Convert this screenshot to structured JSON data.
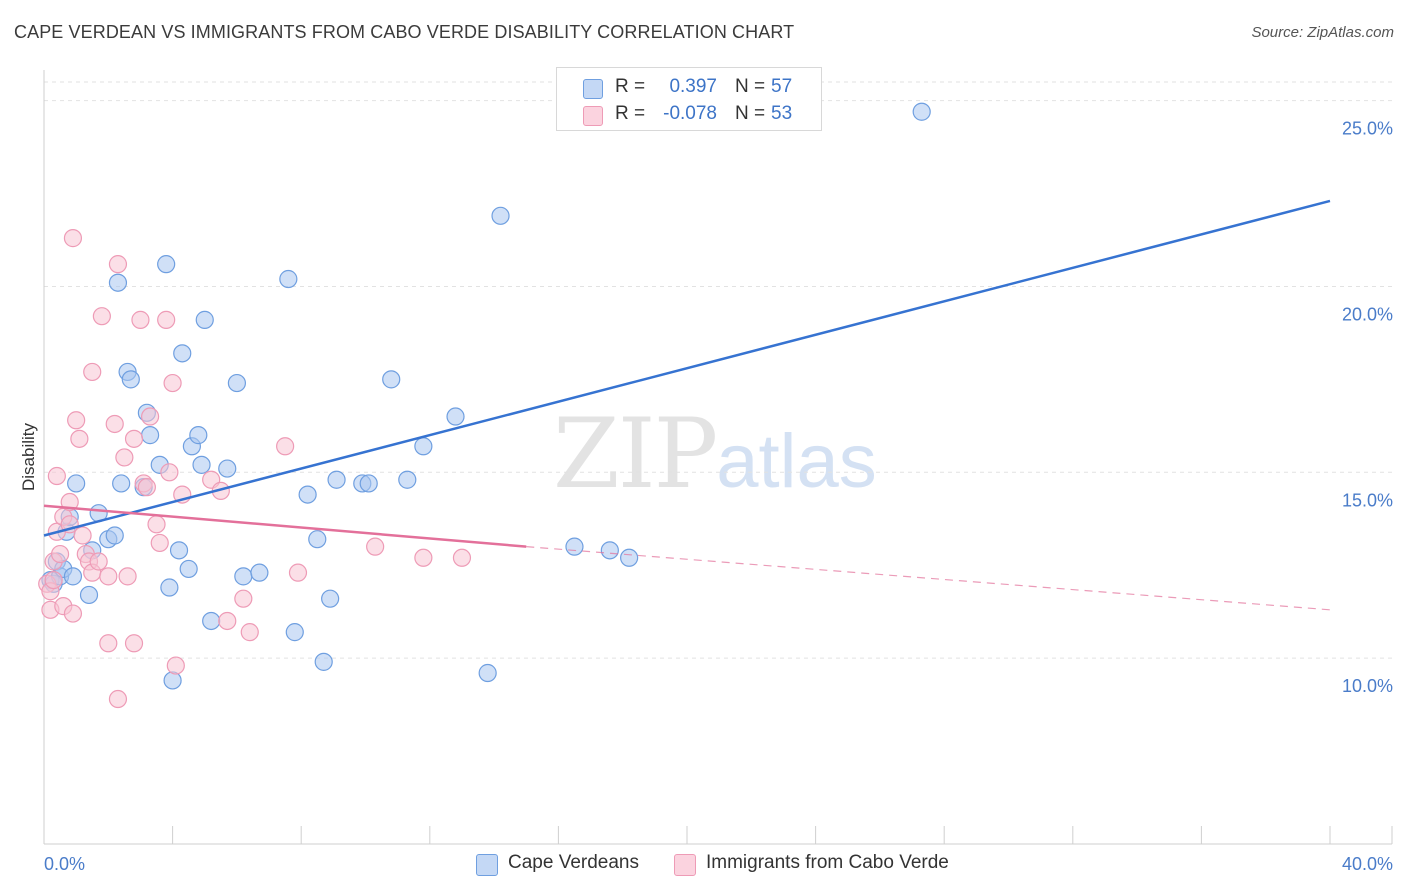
{
  "title": "CAPE VERDEAN VS IMMIGRANTS FROM CABO VERDE DISABILITY CORRELATION CHART",
  "source": "Source: ZipAtlas.com",
  "watermark": {
    "zip": "ZIP",
    "atlas": "atlas"
  },
  "legend_top": [
    {
      "r_label": "R =",
      "r_value": "0.397",
      "n_label": "N =",
      "n_value": "57"
    },
    {
      "r_label": "R =",
      "r_value": "-0.078",
      "n_label": "N =",
      "n_value": "53"
    }
  ],
  "chart_data": {
    "type": "scatter",
    "ylabel": "Disability",
    "xlim": [
      0,
      40
    ],
    "ylim": [
      5,
      25.5
    ],
    "x_tick_labels": [
      "0.0%",
      "40.0%"
    ],
    "y_ticks": [
      10,
      15,
      20,
      25
    ],
    "y_tick_labels": [
      "10.0%",
      "15.0%",
      "20.0%",
      "25.0%"
    ],
    "grid": true,
    "legend_position": "bottom",
    "series": [
      {
        "name": "Cape Verdeans",
        "color": "#a9c6f0",
        "edge": "#6f9fe0",
        "trend": {
          "x": [
            0,
            40
          ],
          "y": [
            13.3,
            22.3
          ],
          "color": "#3673d1",
          "style": "solid"
        },
        "points": [
          [
            0.2,
            12.1
          ],
          [
            0.3,
            12.0
          ],
          [
            0.4,
            12.6
          ],
          [
            0.5,
            12.2
          ],
          [
            0.6,
            12.4
          ],
          [
            0.7,
            13.4
          ],
          [
            0.8,
            13.8
          ],
          [
            0.9,
            12.2
          ],
          [
            1.0,
            14.7
          ],
          [
            1.4,
            11.7
          ],
          [
            1.5,
            12.9
          ],
          [
            1.7,
            13.9
          ],
          [
            2.0,
            13.2
          ],
          [
            2.2,
            13.3
          ],
          [
            2.4,
            14.7
          ],
          [
            2.3,
            20.1
          ],
          [
            2.6,
            17.7
          ],
          [
            2.7,
            17.5
          ],
          [
            3.1,
            14.6
          ],
          [
            3.2,
            16.6
          ],
          [
            3.3,
            16.0
          ],
          [
            3.6,
            15.2
          ],
          [
            3.8,
            20.6
          ],
          [
            3.9,
            11.9
          ],
          [
            4.0,
            9.4
          ],
          [
            4.2,
            12.9
          ],
          [
            4.3,
            18.2
          ],
          [
            4.5,
            12.4
          ],
          [
            4.6,
            15.7
          ],
          [
            4.8,
            16.0
          ],
          [
            4.9,
            15.2
          ],
          [
            5.0,
            19.1
          ],
          [
            5.2,
            11.0
          ],
          [
            5.7,
            15.1
          ],
          [
            6.0,
            17.4
          ],
          [
            6.2,
            12.2
          ],
          [
            6.7,
            12.3
          ],
          [
            7.6,
            20.2
          ],
          [
            7.8,
            10.7
          ],
          [
            8.2,
            14.4
          ],
          [
            8.5,
            13.2
          ],
          [
            8.7,
            9.9
          ],
          [
            8.9,
            11.6
          ],
          [
            9.1,
            14.8
          ],
          [
            9.9,
            14.7
          ],
          [
            10.1,
            14.7
          ],
          [
            10.8,
            17.5
          ],
          [
            11.3,
            14.8
          ],
          [
            11.8,
            15.7
          ],
          [
            12.8,
            16.5
          ],
          [
            13.8,
            9.6
          ],
          [
            14.2,
            21.9
          ],
          [
            16.5,
            13.0
          ],
          [
            17.6,
            12.9
          ],
          [
            18.2,
            12.7
          ],
          [
            27.3,
            24.7
          ],
          [
            21.9,
            24.6
          ]
        ]
      },
      {
        "name": "Immigrants from Cabo Verde",
        "color": "#f8c4d4",
        "edge": "#ee9bb6",
        "trend": {
          "x": [
            0,
            15
          ],
          "y": [
            14.1,
            13.0
          ],
          "x_dashed": [
            15,
            40
          ],
          "y_dashed": [
            13.0,
            11.3
          ],
          "color": "#e3709a",
          "style": "solid+dashed"
        },
        "points": [
          [
            0.1,
            12.0
          ],
          [
            0.2,
            11.8
          ],
          [
            0.2,
            11.3
          ],
          [
            0.3,
            12.6
          ],
          [
            0.4,
            13.4
          ],
          [
            0.4,
            14.9
          ],
          [
            0.5,
            12.8
          ],
          [
            0.6,
            13.8
          ],
          [
            0.6,
            11.4
          ],
          [
            0.8,
            14.2
          ],
          [
            0.8,
            13.6
          ],
          [
            0.9,
            21.3
          ],
          [
            0.9,
            11.2
          ],
          [
            1.0,
            16.4
          ],
          [
            1.1,
            15.9
          ],
          [
            1.2,
            13.3
          ],
          [
            1.3,
            12.8
          ],
          [
            1.4,
            12.6
          ],
          [
            1.5,
            12.3
          ],
          [
            1.7,
            12.6
          ],
          [
            1.8,
            19.2
          ],
          [
            2.0,
            12.2
          ],
          [
            2.0,
            10.4
          ],
          [
            2.2,
            16.3
          ],
          [
            2.3,
            20.6
          ],
          [
            2.3,
            8.9
          ],
          [
            2.5,
            15.4
          ],
          [
            2.6,
            12.2
          ],
          [
            2.8,
            15.9
          ],
          [
            2.8,
            10.4
          ],
          [
            3.0,
            19.1
          ],
          [
            3.1,
            14.7
          ],
          [
            3.2,
            14.6
          ],
          [
            3.3,
            16.5
          ],
          [
            3.5,
            13.6
          ],
          [
            3.6,
            13.1
          ],
          [
            3.8,
            19.1
          ],
          [
            3.9,
            15.0
          ],
          [
            4.0,
            17.4
          ],
          [
            4.1,
            9.8
          ],
          [
            4.3,
            14.4
          ],
          [
            5.2,
            14.8
          ],
          [
            5.5,
            14.5
          ],
          [
            5.7,
            11.0
          ],
          [
            6.2,
            11.6
          ],
          [
            6.4,
            10.7
          ],
          [
            7.5,
            15.7
          ],
          [
            7.9,
            12.3
          ],
          [
            10.3,
            13.0
          ],
          [
            11.8,
            12.7
          ],
          [
            13.0,
            12.7
          ],
          [
            0.3,
            12.1
          ],
          [
            1.5,
            17.7
          ]
        ]
      }
    ]
  }
}
